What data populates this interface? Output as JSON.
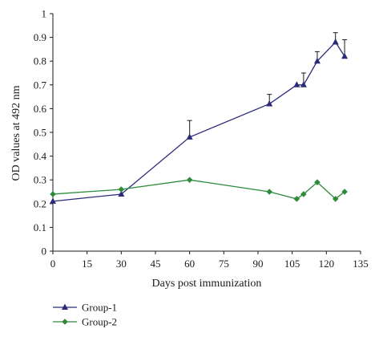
{
  "chart_data": {
    "type": "line",
    "title": "",
    "xlabel": "Days post immunization",
    "ylabel": "OD values at 492 nm",
    "xlim": [
      0,
      135
    ],
    "ylim": [
      0,
      1
    ],
    "x_ticks": [
      0,
      15,
      30,
      45,
      60,
      75,
      90,
      105,
      120,
      135
    ],
    "y_ticks": [
      0,
      0.1,
      0.2,
      0.3,
      0.4,
      0.5,
      0.6,
      0.7,
      0.8,
      0.9,
      1
    ],
    "x_tick_labels": [
      "0",
      "15",
      "30",
      "45",
      "60",
      "75",
      "90",
      "105",
      "120",
      "135"
    ],
    "y_tick_labels": [
      "0",
      "0.1",
      "0.2",
      "0.3",
      "0.4",
      "0.5",
      "0.6",
      "0.7",
      "0.8",
      "0.9",
      "1"
    ],
    "grid": false,
    "legend_position": "bottom-left",
    "series": [
      {
        "name": "Group-1",
        "color": "#2b2b7a",
        "marker": "triangle",
        "x": [
          0,
          30,
          60,
          95,
          107,
          110,
          116,
          124,
          128
        ],
        "y": [
          0.21,
          0.24,
          0.48,
          0.62,
          0.7,
          0.7,
          0.8,
          0.88,
          0.82
        ],
        "error_upper": [
          0,
          0,
          0.07,
          0.04,
          0,
          0.05,
          0.04,
          0.04,
          0.07
        ]
      },
      {
        "name": "Group-2",
        "color": "#2e8b3a",
        "marker": "diamond",
        "x": [
          0,
          30,
          60,
          95,
          107,
          110,
          116,
          124,
          128
        ],
        "y": [
          0.24,
          0.26,
          0.3,
          0.25,
          0.22,
          0.24,
          0.29,
          0.22,
          0.25
        ]
      }
    ]
  }
}
